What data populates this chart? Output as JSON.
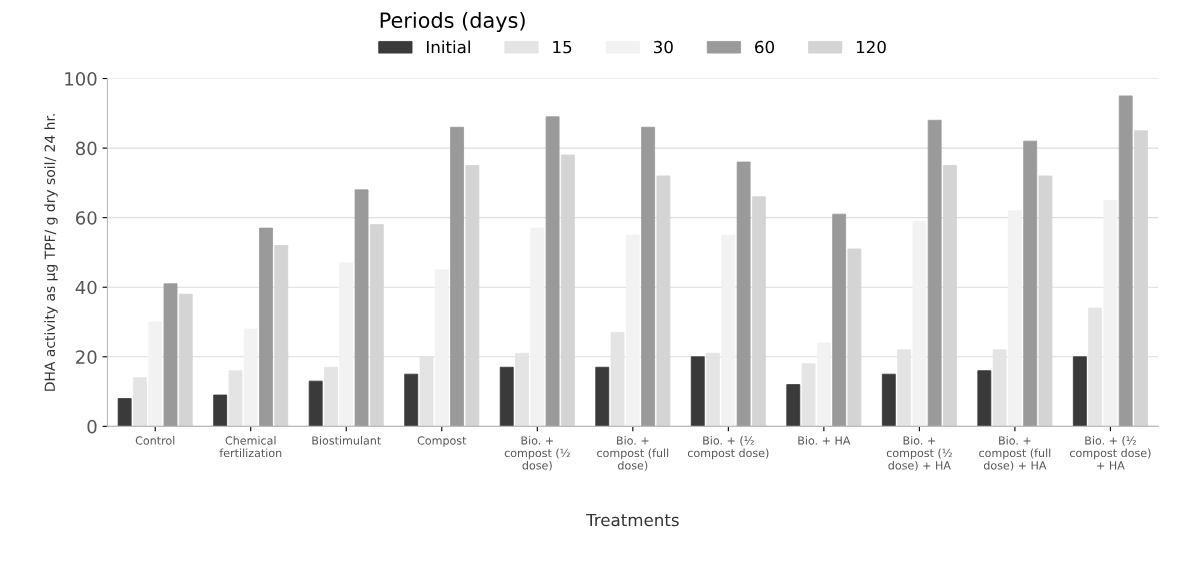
{
  "chart_data": {
    "type": "bar",
    "xlabel": "Treatments",
    "ylabel": "DHA activity as µg TPF/ g dry soil/ 24 hr.",
    "legend_title": "Periods (days)",
    "categories": [
      "Control",
      "Chemical fertilization",
      "Biostimulant",
      "Compost",
      "Bio. + compost (½ dose)",
      "Bio. + compost (full dose)",
      "Bio. + (½ compost dose)",
      "Bio. + HA",
      "Bio. + compost (½ dose) + HA",
      "Bio. + compost (full dose) + HA",
      "Bio. + (½ compost dose) + HA"
    ],
    "series": [
      {
        "name": "Initial",
        "color": "#3a3a3a",
        "values": [
          8,
          9,
          13,
          15,
          17,
          17,
          20,
          12,
          15,
          16,
          20
        ]
      },
      {
        "name": "15",
        "color": "#e4e4e4",
        "values": [
          14,
          16,
          17,
          20,
          21,
          27,
          21,
          18,
          22,
          22,
          34
        ]
      },
      {
        "name": "30",
        "color": "#f2f2f2",
        "values": [
          30,
          28,
          47,
          45,
          57,
          55,
          55,
          24,
          59,
          62,
          65
        ]
      },
      {
        "name": "60",
        "color": "#9a9a9a",
        "values": [
          41,
          57,
          68,
          86,
          89,
          86,
          76,
          61,
          88,
          82,
          95
        ]
      },
      {
        "name": "120",
        "color": "#d4d4d4",
        "values": [
          38,
          52,
          58,
          75,
          78,
          72,
          66,
          51,
          75,
          72,
          85
        ]
      }
    ],
    "ylim": [
      0,
      100
    ],
    "yticks": [
      0,
      20,
      40,
      60,
      80,
      100
    ],
    "grid": "y",
    "legend": "top"
  }
}
